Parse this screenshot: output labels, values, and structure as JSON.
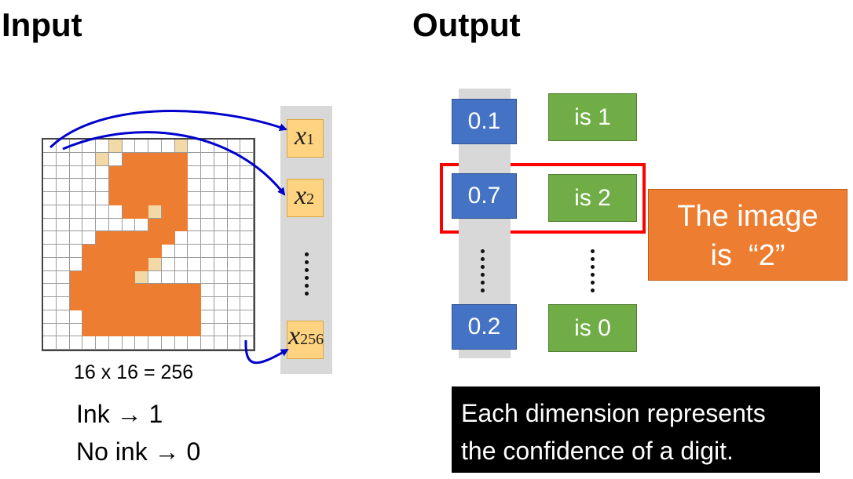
{
  "headings": {
    "input": "Input",
    "output": "Output"
  },
  "input": {
    "grid_caption": "16 x 16 = 256",
    "grid_size": 16,
    "ink_cells": [
      [
        1,
        6
      ],
      [
        1,
        7
      ],
      [
        1,
        8
      ],
      [
        1,
        9
      ],
      [
        1,
        10
      ],
      [
        2,
        5
      ],
      [
        2,
        6
      ],
      [
        2,
        7
      ],
      [
        2,
        8
      ],
      [
        2,
        9
      ],
      [
        2,
        10
      ],
      [
        3,
        5
      ],
      [
        3,
        6
      ],
      [
        3,
        7
      ],
      [
        3,
        8
      ],
      [
        3,
        9
      ],
      [
        3,
        10
      ],
      [
        4,
        5
      ],
      [
        4,
        6
      ],
      [
        4,
        7
      ],
      [
        4,
        8
      ],
      [
        4,
        9
      ],
      [
        4,
        10
      ],
      [
        5,
        6
      ],
      [
        5,
        7
      ],
      [
        5,
        9
      ],
      [
        5,
        10
      ],
      [
        6,
        8
      ],
      [
        6,
        9
      ],
      [
        6,
        10
      ],
      [
        7,
        4
      ],
      [
        7,
        5
      ],
      [
        7,
        6
      ],
      [
        7,
        7
      ],
      [
        7,
        8
      ],
      [
        7,
        9
      ],
      [
        8,
        3
      ],
      [
        8,
        4
      ],
      [
        8,
        5
      ],
      [
        8,
        6
      ],
      [
        8,
        7
      ],
      [
        8,
        8
      ],
      [
        9,
        3
      ],
      [
        9,
        4
      ],
      [
        9,
        5
      ],
      [
        9,
        6
      ],
      [
        9,
        7
      ],
      [
        10,
        2
      ],
      [
        10,
        3
      ],
      [
        10,
        4
      ],
      [
        10,
        5
      ],
      [
        10,
        6
      ],
      [
        11,
        2
      ],
      [
        11,
        3
      ],
      [
        11,
        4
      ],
      [
        11,
        5
      ],
      [
        11,
        6
      ],
      [
        11,
        7
      ],
      [
        11,
        8
      ],
      [
        11,
        9
      ],
      [
        11,
        10
      ],
      [
        11,
        11
      ],
      [
        12,
        2
      ],
      [
        12,
        3
      ],
      [
        12,
        4
      ],
      [
        12,
        5
      ],
      [
        12,
        6
      ],
      [
        12,
        7
      ],
      [
        12,
        8
      ],
      [
        12,
        9
      ],
      [
        12,
        10
      ],
      [
        12,
        11
      ],
      [
        13,
        3
      ],
      [
        13,
        4
      ],
      [
        13,
        5
      ],
      [
        13,
        6
      ],
      [
        13,
        7
      ],
      [
        13,
        8
      ],
      [
        13,
        9
      ],
      [
        13,
        10
      ],
      [
        13,
        11
      ],
      [
        14,
        3
      ],
      [
        14,
        4
      ],
      [
        14,
        5
      ],
      [
        14,
        6
      ],
      [
        14,
        7
      ],
      [
        14,
        8
      ],
      [
        14,
        9
      ],
      [
        14,
        10
      ],
      [
        14,
        11
      ]
    ],
    "faint_cells": [
      [
        0,
        5
      ],
      [
        0,
        10
      ],
      [
        5,
        8
      ],
      [
        9,
        8
      ],
      [
        10,
        7
      ],
      [
        1,
        4
      ]
    ],
    "vector": [
      {
        "var": "x",
        "sub": "1"
      },
      {
        "var": "x",
        "sub": "2"
      },
      {
        "var": "x",
        "sub": "256"
      }
    ],
    "ink_rule": "Ink → 1",
    "no_ink_rule": "No ink → 0"
  },
  "output": {
    "values": [
      "0.1",
      "0.7",
      "0.2"
    ],
    "labels": [
      "is 1",
      "is 2",
      "is 0"
    ],
    "result_line1": "The image",
    "result_line2": "is  “2”",
    "note_line1": "Each dimension represents",
    "note_line2": "the confidence of a digit."
  },
  "colors": {
    "ink": "#ed7d31",
    "faint": "#f2d9a6",
    "vector_box": "#ffd37f",
    "value_box": "#4472c4",
    "label_box": "#70ad47",
    "highlight": "#ff0000",
    "arrow": "#0000cc"
  }
}
